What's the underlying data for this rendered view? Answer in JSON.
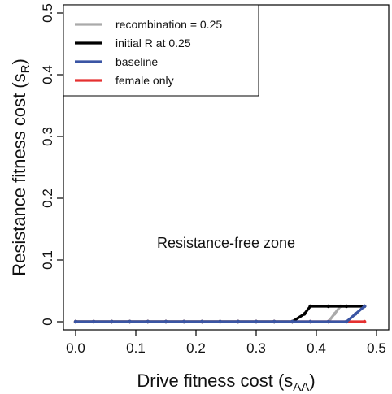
{
  "chart_data": {
    "type": "line",
    "xlabel": {
      "main": "Drive fitness cost (s",
      "sub": "AA",
      "close": ")"
    },
    "ylabel": {
      "main": "Resistance fitness cost (s",
      "sub": "R",
      "close": ")"
    },
    "xlim": [
      0.0,
      0.5
    ],
    "ylim": [
      0.0,
      0.5
    ],
    "xticks": [
      "0.0",
      "0.1",
      "0.2",
      "0.3",
      "0.4",
      "0.5"
    ],
    "yticks": [
      "0",
      "0.1",
      "0.2",
      "0.3",
      "0.4",
      "0.5"
    ],
    "grid": false,
    "legend_position": "top-left",
    "annotations": [
      {
        "text": "Resistance-free zone",
        "x": 0.25,
        "y": 0.12
      }
    ],
    "series": [
      {
        "name": "recombination = 0.25",
        "color": "#aaaaaa",
        "x": [
          0.0,
          0.03,
          0.06,
          0.09,
          0.12,
          0.15,
          0.18,
          0.21,
          0.24,
          0.27,
          0.3,
          0.33,
          0.36,
          0.39,
          0.42,
          0.43,
          0.44,
          0.45
        ],
        "y": [
          0.0,
          0.0,
          0.0,
          0.0,
          0.0,
          0.0,
          0.0,
          0.0,
          0.0,
          0.0,
          0.0,
          0.0,
          0.0,
          0.0,
          0.0,
          0.0125,
          0.025,
          0.025
        ]
      },
      {
        "name": "female only",
        "color": "#e53030",
        "x": [
          0.0,
          0.03,
          0.06,
          0.09,
          0.12,
          0.15,
          0.18,
          0.21,
          0.24,
          0.27,
          0.3,
          0.33,
          0.36,
          0.39,
          0.42,
          0.45,
          0.48
        ],
        "y": [
          0.0,
          0.0,
          0.0,
          0.0,
          0.0,
          0.0,
          0.0,
          0.0,
          0.0,
          0.0,
          0.0,
          0.0,
          0.0,
          0.0,
          0.0,
          0.0,
          0.0
        ]
      },
      {
        "name": "initial R at 0.25",
        "color": "#000000",
        "x": [
          0.0,
          0.03,
          0.06,
          0.09,
          0.12,
          0.15,
          0.18,
          0.21,
          0.24,
          0.27,
          0.3,
          0.33,
          0.36,
          0.38,
          0.39,
          0.42,
          0.45,
          0.48
        ],
        "y": [
          0.0,
          0.0,
          0.0,
          0.0,
          0.0,
          0.0,
          0.0,
          0.0,
          0.0,
          0.0,
          0.0,
          0.0,
          0.0,
          0.0125,
          0.025,
          0.025,
          0.025,
          0.025
        ]
      },
      {
        "name": "baseline",
        "color": "#3a55a4",
        "x": [
          0.0,
          0.03,
          0.06,
          0.09,
          0.12,
          0.15,
          0.18,
          0.21,
          0.24,
          0.27,
          0.3,
          0.33,
          0.36,
          0.39,
          0.42,
          0.45,
          0.465,
          0.48
        ],
        "y": [
          0.0,
          0.0,
          0.0,
          0.0,
          0.0,
          0.0,
          0.0,
          0.0,
          0.0,
          0.0,
          0.0,
          0.0,
          0.0,
          0.0,
          0.0,
          0.0,
          0.0125,
          0.025
        ]
      }
    ],
    "legend_order": [
      "recombination = 0.25",
      "initial R at 0.25",
      "baseline",
      "female only"
    ]
  }
}
